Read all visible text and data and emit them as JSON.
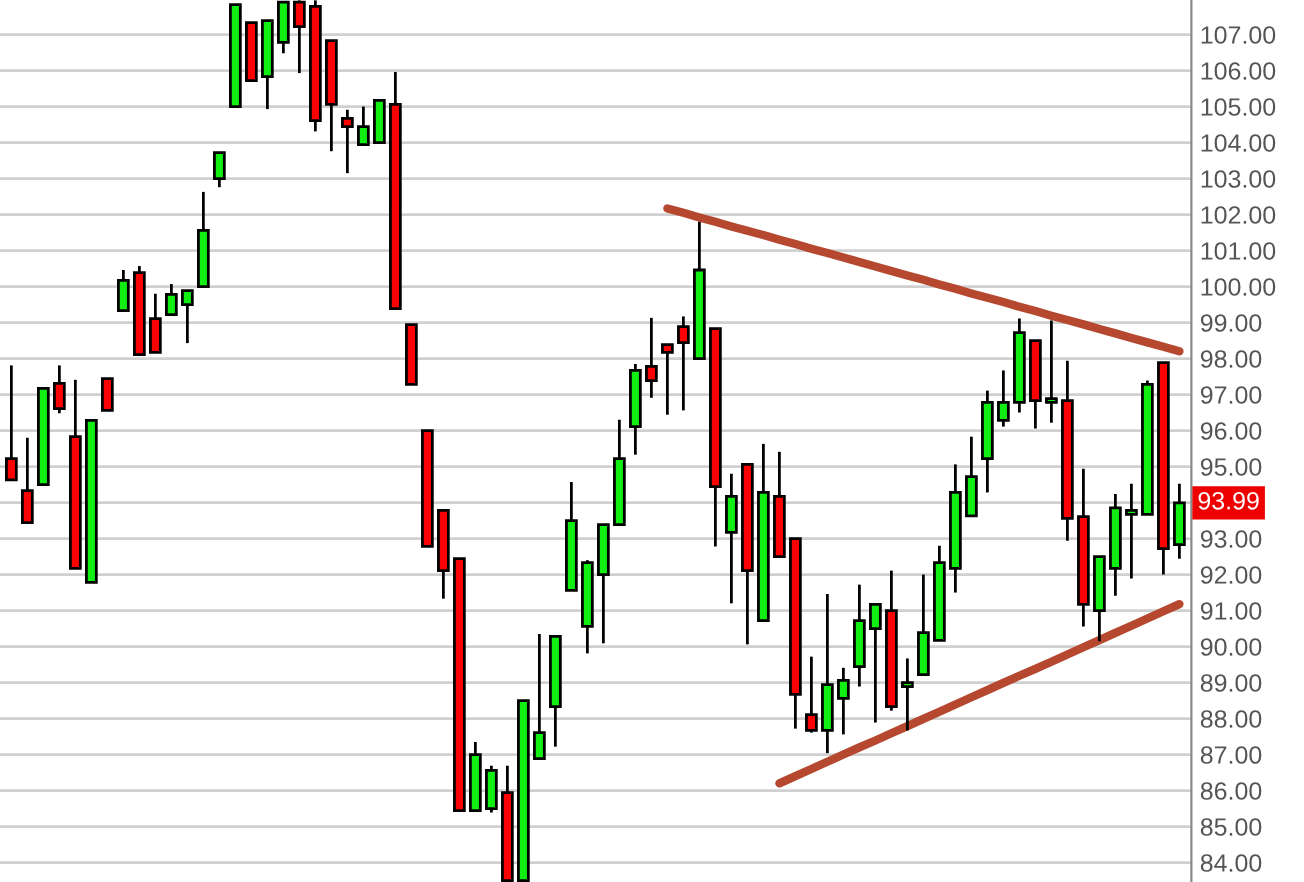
{
  "chart_data": {
    "type": "candlestick",
    "categories": [
      null,
      null,
      null,
      null,
      null,
      null,
      null,
      null,
      null,
      null,
      null,
      null,
      null,
      null,
      null,
      null,
      null,
      null,
      null,
      null,
      null,
      null,
      null,
      null,
      null,
      null,
      null,
      null,
      null,
      null,
      null,
      null,
      null,
      null,
      null,
      null,
      null,
      null,
      null,
      null,
      null,
      null,
      null,
      null,
      null,
      null,
      null,
      null,
      null,
      null,
      null,
      null,
      null,
      null,
      null,
      null,
      null,
      null,
      null,
      null,
      null,
      null,
      null,
      null,
      null,
      null,
      null,
      null,
      null,
      null,
      null,
      null,
      null,
      null
    ],
    "ohlc": [
      [
        95.22,
        97.81,
        94.63,
        94.63
      ],
      [
        94.33,
        95.8,
        93.44,
        93.44
      ],
      [
        94.5,
        97.17,
        94.5,
        97.17
      ],
      [
        97.31,
        97.81,
        96.48,
        96.61
      ],
      [
        95.83,
        97.41,
        92.17,
        92.17
      ],
      [
        91.78,
        96.28,
        91.78,
        96.28
      ],
      [
        97.44,
        97.44,
        96.56,
        96.56
      ],
      [
        99.33,
        100.46,
        99.33,
        100.17
      ],
      [
        100.39,
        100.57,
        98.11,
        98.11
      ],
      [
        99.11,
        99.8,
        98.17,
        98.17
      ],
      [
        99.22,
        100.07,
        99.22,
        99.78
      ],
      [
        99.5,
        99.89,
        98.43,
        99.89
      ],
      [
        100.0,
        102.63,
        100.0,
        101.56
      ],
      [
        103.0,
        103.72,
        102.76,
        103.72
      ],
      [
        105.0,
        107.83,
        105.0,
        107.83
      ],
      [
        107.33,
        107.33,
        105.72,
        105.72
      ],
      [
        105.83,
        107.39,
        104.93,
        107.39
      ],
      [
        106.78,
        107.9,
        106.48,
        107.9
      ],
      [
        107.9,
        107.95,
        105.93,
        107.22
      ],
      [
        107.78,
        107.95,
        104.31,
        104.61
      ],
      [
        106.83,
        106.83,
        103.76,
        105.06
      ],
      [
        104.67,
        104.91,
        103.15,
        104.44
      ],
      [
        103.94,
        105.0,
        103.94,
        104.44
      ],
      [
        104.0,
        105.17,
        104.0,
        105.17
      ],
      [
        105.06,
        105.96,
        99.39,
        99.39
      ],
      [
        98.94,
        98.94,
        97.28,
        97.28
      ],
      [
        96.0,
        96.0,
        92.78,
        92.78
      ],
      [
        93.78,
        93.78,
        91.33,
        92.11
      ],
      [
        92.44,
        92.44,
        85.44,
        85.44
      ],
      [
        85.44,
        87.35,
        85.44,
        87.0
      ],
      [
        85.5,
        86.69,
        85.39,
        86.56
      ],
      [
        85.94,
        86.69,
        83.5,
        83.5
      ],
      [
        83.5,
        88.5,
        83.5,
        88.5
      ],
      [
        86.89,
        90.35,
        86.89,
        87.61
      ],
      [
        88.33,
        90.28,
        87.22,
        90.28
      ],
      [
        91.56,
        94.57,
        91.56,
        93.5
      ],
      [
        90.56,
        92.4,
        89.81,
        92.33
      ],
      [
        92.0,
        93.39,
        90.09,
        93.39
      ],
      [
        93.39,
        96.3,
        93.39,
        95.22
      ],
      [
        96.11,
        97.85,
        95.33,
        97.67
      ],
      [
        97.78,
        99.13,
        96.91,
        97.39
      ],
      [
        98.39,
        98.39,
        96.44,
        98.17
      ],
      [
        98.89,
        99.17,
        96.56,
        98.44
      ],
      [
        98.0,
        101.8,
        98.0,
        100.46
      ],
      [
        98.83,
        98.83,
        92.78,
        94.44
      ],
      [
        93.17,
        94.8,
        91.2,
        94.17
      ],
      [
        95.06,
        95.06,
        90.06,
        92.11
      ],
      [
        90.72,
        95.63,
        90.72,
        94.28
      ],
      [
        94.17,
        95.41,
        92.5,
        92.5
      ],
      [
        93.0,
        93.0,
        87.72,
        88.67
      ],
      [
        88.11,
        89.72,
        87.61,
        87.67
      ],
      [
        87.67,
        91.46,
        87.04,
        88.94
      ],
      [
        88.56,
        89.41,
        87.56,
        89.06
      ],
      [
        89.44,
        91.72,
        88.89,
        90.72
      ],
      [
        90.5,
        91.2,
        87.89,
        91.17
      ],
      [
        91.0,
        92.11,
        88.22,
        88.33
      ],
      [
        88.89,
        89.67,
        87.67,
        89.0
      ],
      [
        89.22,
        92.0,
        89.22,
        90.39
      ],
      [
        90.17,
        92.8,
        90.17,
        92.33
      ],
      [
        92.17,
        95.06,
        91.5,
        94.28
      ],
      [
        93.63,
        95.83,
        93.63,
        94.72
      ],
      [
        95.22,
        97.11,
        94.28,
        96.78
      ],
      [
        96.28,
        97.67,
        96.11,
        96.78
      ],
      [
        96.78,
        99.11,
        96.5,
        98.72
      ],
      [
        98.5,
        98.5,
        96.06,
        96.83
      ],
      [
        96.78,
        99.06,
        96.22,
        96.89
      ],
      [
        96.83,
        97.94,
        92.94,
        93.56
      ],
      [
        93.61,
        94.94,
        90.56,
        91.17
      ],
      [
        91.0,
        92.5,
        90.15,
        92.5
      ],
      [
        92.17,
        94.24,
        91.41,
        93.85
      ],
      [
        93.67,
        94.52,
        91.89,
        93.78
      ],
      [
        93.67,
        97.39,
        93.67,
        97.28
      ],
      [
        97.89,
        97.89,
        92.0,
        92.72
      ],
      [
        92.83,
        94.52,
        92.44,
        93.99
      ]
    ],
    "colors": [
      "#ff0000",
      "#ff0000",
      "#11ee11",
      "#ff0000",
      "#ff0000",
      "#11ee11",
      "#ff0000",
      "#11ee11",
      "#ff0000",
      "#ff0000",
      "#11ee11",
      "#11ee11",
      "#11ee11",
      "#11ee11",
      "#11ee11",
      "#ff0000",
      "#11ee11",
      "#11ee11",
      "#ff0000",
      "#ff0000",
      "#ff0000",
      "#ff0000",
      "#11ee11",
      "#11ee11",
      "#ff0000",
      "#ff0000",
      "#ff0000",
      "#ff0000",
      "#ff0000",
      "#11ee11",
      "#11ee11",
      "#ff0000",
      "#11ee11",
      "#11ee11",
      "#11ee11",
      "#11ee11",
      "#11ee11",
      "#11ee11",
      "#11ee11",
      "#11ee11",
      "#ff0000",
      "#ff0000",
      "#ff0000",
      "#11ee11",
      "#ff0000",
      "#11ee11",
      "#ff0000",
      "#11ee11",
      "#ff0000",
      "#ff0000",
      "#ff0000",
      "#11ee11",
      "#11ee11",
      "#11ee11",
      "#11ee11",
      "#ff0000",
      "#11ee11",
      "#11ee11",
      "#11ee11",
      "#11ee11",
      "#11ee11",
      "#11ee11",
      "#11ee11",
      "#11ee11",
      "#ff0000",
      "#11ee11",
      "#ff0000",
      "#ff0000",
      "#11ee11",
      "#11ee11",
      "#11ee11",
      "#11ee11",
      "#ff0000",
      "#11ee11"
    ],
    "series": [
      {
        "type": "line",
        "values": [
          null,
          null,
          null,
          null,
          null,
          null,
          null,
          null,
          null,
          null,
          null,
          null,
          null,
          null,
          null,
          null,
          null,
          null,
          null,
          null,
          null,
          null,
          null,
          null,
          null,
          null,
          null,
          null,
          null,
          null,
          null,
          null,
          null,
          null,
          null,
          null,
          null,
          null,
          null,
          null,
          null,
          102.17,
          102.05,
          101.92,
          101.8,
          101.67,
          101.55,
          101.43,
          101.3,
          101.18,
          101.05,
          100.93,
          100.81,
          100.68,
          100.56,
          100.43,
          100.31,
          100.19,
          100.06,
          99.94,
          99.81,
          99.69,
          99.57,
          99.44,
          99.32,
          99.19,
          99.07,
          98.95,
          98.82,
          98.7,
          98.57,
          98.45,
          98.33,
          98.2
        ],
        "color": "#b5482f"
      },
      {
        "type": "line",
        "values": [
          null,
          null,
          null,
          null,
          null,
          null,
          null,
          null,
          null,
          null,
          null,
          null,
          null,
          null,
          null,
          null,
          null,
          null,
          null,
          null,
          null,
          null,
          null,
          null,
          null,
          null,
          null,
          null,
          null,
          null,
          null,
          null,
          null,
          null,
          null,
          null,
          null,
          null,
          null,
          null,
          null,
          null,
          null,
          null,
          null,
          null,
          null,
          null,
          86.2,
          86.4,
          86.6,
          86.8,
          87.0,
          87.2,
          87.39,
          87.59,
          87.79,
          87.99,
          88.19,
          88.39,
          88.59,
          88.79,
          88.99,
          89.19,
          89.38,
          89.58,
          89.78,
          89.98,
          90.18,
          90.38,
          90.58,
          90.78,
          90.98,
          91.18
        ],
        "color": "#b5482f"
      }
    ],
    "ylim": [
      83.46,
      107.96
    ],
    "yticks": [
      {
        "value": 84,
        "label": "84.00"
      },
      {
        "value": 85,
        "label": "85.00"
      },
      {
        "value": 86,
        "label": "86.00"
      },
      {
        "value": 87,
        "label": "87.00"
      },
      {
        "value": 88,
        "label": "88.00"
      },
      {
        "value": 89,
        "label": "89.00"
      },
      {
        "value": 90,
        "label": "90.00"
      },
      {
        "value": 91,
        "label": "91.00"
      },
      {
        "value": 92,
        "label": "92.00"
      },
      {
        "value": 93,
        "label": "93.00"
      },
      {
        "value": 94,
        "label": null
      },
      {
        "value": 95,
        "label": "95.00"
      },
      {
        "value": 96,
        "label": "96.00"
      },
      {
        "value": 97,
        "label": "97.00"
      },
      {
        "value": 98,
        "label": "98.00"
      },
      {
        "value": 99,
        "label": "99.00"
      },
      {
        "value": 100,
        "label": "100.00"
      },
      {
        "value": 101,
        "label": "101.00"
      },
      {
        "value": 102,
        "label": "102.00"
      },
      {
        "value": 103,
        "label": "103.00"
      },
      {
        "value": 104,
        "label": "104.00"
      },
      {
        "value": 105,
        "label": "105.00"
      },
      {
        "value": 106,
        "label": "106.00"
      },
      {
        "value": 107,
        "label": "107.00"
      }
    ],
    "annotations": [
      {
        "text": "93.99",
        "y": 93.99
      }
    ],
    "tick_labels": "y",
    "grid": "y"
  }
}
